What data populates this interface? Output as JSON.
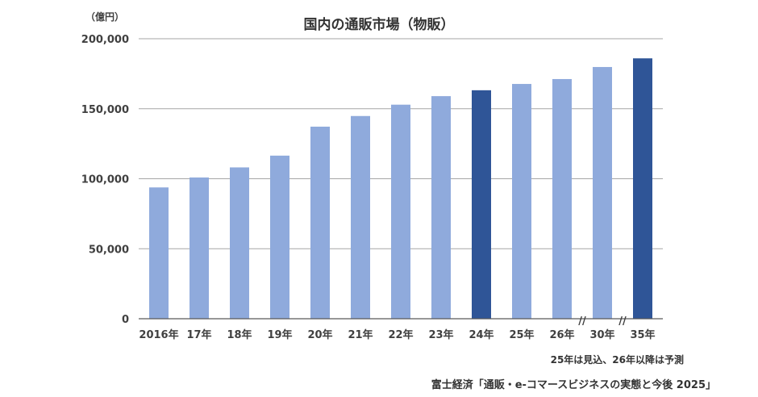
{
  "title": "国内の通販市場（物販）",
  "unit_label": "（億円）",
  "note": "25年は見込、26年以降は予測",
  "source": "富士経済「通販・e-コマースビジネスの実態と今後 2025」",
  "axis_break_marks": [
    "//",
    "//"
  ],
  "colors": {
    "actual": "#8faadc",
    "highlight": "#2f5597",
    "grid": "#a6a6a6",
    "axis": "#595959",
    "text": "#404040"
  },
  "chart_data": {
    "type": "bar",
    "title": "国内の通販市場（物販）",
    "ylabel": "（億円）",
    "xlabel": "",
    "categories": [
      "2016年",
      "17年",
      "18年",
      "19年",
      "20年",
      "21年",
      "22年",
      "23年",
      "24年",
      "25年",
      "26年",
      "30年",
      "35年"
    ],
    "values": [
      93800,
      100900,
      108100,
      116500,
      137200,
      144800,
      152900,
      159000,
      163200,
      167700,
      171200,
      179800,
      186000
    ],
    "highlight": [
      "24年",
      "35年"
    ],
    "ylim": [
      0,
      200000
    ],
    "yticks": [
      0,
      50000,
      100000,
      150000,
      200000
    ],
    "ytick_labels": [
      "0",
      "50,000",
      "100,000",
      "150,000",
      "200,000"
    ],
    "grid": true,
    "legend": "none"
  }
}
